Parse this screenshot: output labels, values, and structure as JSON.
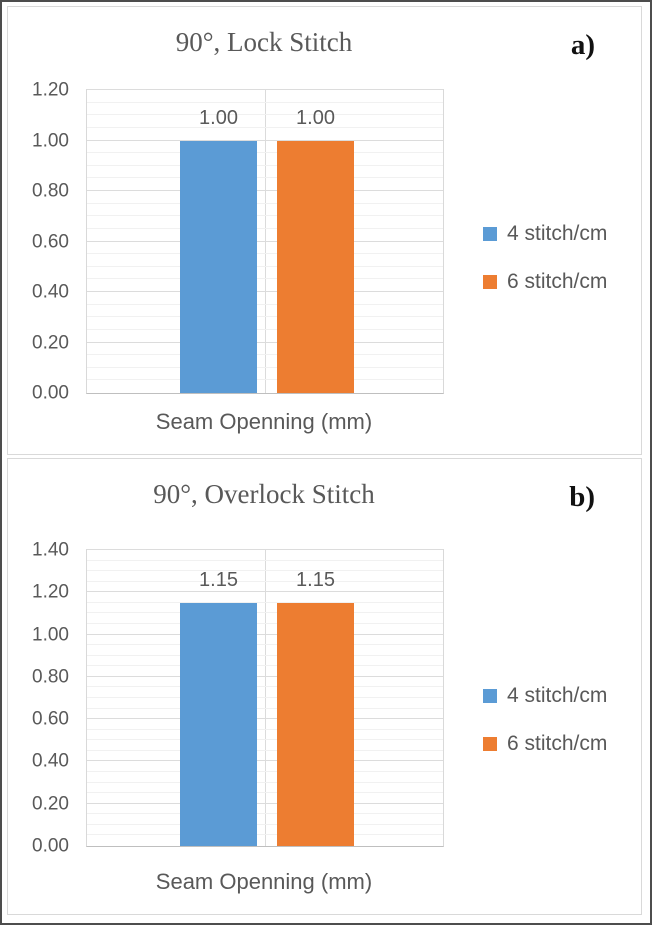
{
  "colors": {
    "bar_blue": "#5B9BD5",
    "bar_orange": "#ED7D31",
    "text_gray": "#595959",
    "major_gridline": "#DCDCDC",
    "minor_gridline": "#F1F1F1"
  },
  "chart_data": [
    {
      "type": "bar",
      "panel_label": "a)",
      "title": "90°, Lock Stitch",
      "xlabel": "Seam Openning (mm)",
      "categories": [
        "Seam Openning (mm)"
      ],
      "series": [
        {
          "name": "4 stitch/cm",
          "color": "#5B9BD5",
          "values": [
            1.0
          ]
        },
        {
          "name": "6 stitch/cm",
          "color": "#ED7D31",
          "values": [
            1.0
          ]
        }
      ],
      "data_labels": [
        "1.00",
        "1.00"
      ],
      "ylim": [
        0.0,
        1.2
      ],
      "yticks": [
        "0.00",
        "0.20",
        "0.40",
        "0.60",
        "0.80",
        "1.00",
        "1.20"
      ],
      "ytick_major_step": 0.2,
      "ytick_minor_step": 0.05,
      "grid": "horizontal major+minor",
      "legend_position": "right",
      "legend": [
        {
          "label": "4 stitch/cm",
          "color": "#5B9BD5"
        },
        {
          "label": "6 stitch/cm",
          "color": "#ED7D31"
        }
      ]
    },
    {
      "type": "bar",
      "panel_label": "b)",
      "title": "90°, Overlock Stitch",
      "xlabel": "Seam Openning (mm)",
      "categories": [
        "Seam Openning (mm)"
      ],
      "series": [
        {
          "name": "4 stitch/cm",
          "color": "#5B9BD5",
          "values": [
            1.15
          ]
        },
        {
          "name": "6 stitch/cm",
          "color": "#ED7D31",
          "values": [
            1.15
          ]
        }
      ],
      "data_labels": [
        "1.15",
        "1.15"
      ],
      "ylim": [
        0.0,
        1.4
      ],
      "yticks": [
        "0.00",
        "0.20",
        "0.40",
        "0.60",
        "0.80",
        "1.00",
        "1.20",
        "1.40"
      ],
      "ytick_major_step": 0.2,
      "ytick_minor_step": 0.05,
      "grid": "horizontal major+minor",
      "legend_position": "right",
      "legend": [
        {
          "label": "4 stitch/cm",
          "color": "#5B9BD5"
        },
        {
          "label": "6 stitch/cm",
          "color": "#ED7D31"
        }
      ]
    }
  ]
}
